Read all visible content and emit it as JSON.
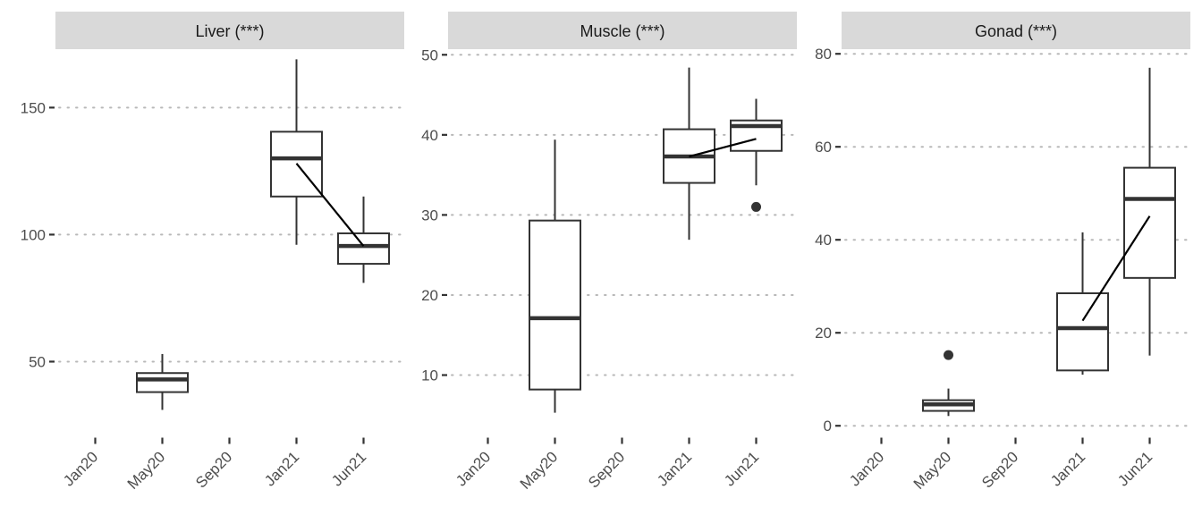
{
  "chart_data": [
    {
      "type": "box",
      "title": "Liver (***)",
      "xlabel": "",
      "ylabel": "",
      "categories": [
        "Jan20",
        "May20",
        "Sep20",
        "Jan21",
        "Jun21"
      ],
      "ylim": [
        22,
        173
      ],
      "yticks": [
        50,
        100,
        150
      ],
      "grid": "horizontal dotted",
      "boxes": [
        {
          "x": "May20",
          "whisker_low": 31,
          "q1": 38,
          "median": 43,
          "q3": 45.5,
          "whisker_high": 53,
          "outliers": []
        },
        {
          "x": "Jan21",
          "whisker_low": 96,
          "q1": 115,
          "median": 130,
          "q3": 140.5,
          "whisker_high": 169,
          "outliers": []
        },
        {
          "x": "Jun21",
          "whisker_low": 81,
          "q1": 88.5,
          "median": 95.5,
          "q3": 100.5,
          "whisker_high": 115,
          "outliers": []
        }
      ],
      "trend": [
        {
          "x": "Jan21",
          "y": 128
        },
        {
          "x": "Jun21",
          "y": 95.5
        }
      ]
    },
    {
      "type": "box",
      "title": "Muscle (***)",
      "xlabel": "",
      "ylabel": "",
      "categories": [
        "Jan20",
        "May20",
        "Sep20",
        "Jan21",
        "Jun21"
      ],
      "ylim": [
        2.8,
        50.7
      ],
      "yticks": [
        10,
        20,
        30,
        40,
        50
      ],
      "grid": "horizontal dotted",
      "boxes": [
        {
          "x": "May20",
          "whisker_low": 5.3,
          "q1": 8.2,
          "median": 17.1,
          "q3": 29.3,
          "whisker_high": 39.4,
          "outliers": []
        },
        {
          "x": "Jan21",
          "whisker_low": 26.9,
          "q1": 34.0,
          "median": 37.3,
          "q3": 40.7,
          "whisker_high": 48.4,
          "outliers": []
        },
        {
          "x": "Jun21",
          "whisker_low": 33.7,
          "q1": 38.0,
          "median": 41.1,
          "q3": 41.8,
          "whisker_high": 44.5,
          "outliers": [
            31.0
          ]
        }
      ],
      "trend": [
        {
          "x": "Jan21",
          "y": 37.3
        },
        {
          "x": "Jun21",
          "y": 39.5
        }
      ]
    },
    {
      "type": "box",
      "title": "Gonad (***)",
      "xlabel": "",
      "ylabel": "",
      "categories": [
        "Jan20",
        "May20",
        "Sep20",
        "Jan21",
        "Jun21"
      ],
      "ylim": [
        -1.5,
        81
      ],
      "yticks": [
        0,
        20,
        40,
        60,
        80
      ],
      "grid": "horizontal dotted",
      "boxes": [
        {
          "x": "May20",
          "whisker_low": 2.1,
          "q1": 3.2,
          "median": 4.6,
          "q3": 5.5,
          "whisker_high": 8.0,
          "outliers": [
            15.2
          ]
        },
        {
          "x": "Jan21",
          "whisker_low": 11.0,
          "q1": 11.9,
          "median": 21.0,
          "q3": 28.5,
          "whisker_high": 41.6,
          "outliers": []
        },
        {
          "x": "Jun21",
          "whisker_low": 15.1,
          "q1": 31.8,
          "median": 48.8,
          "q3": 55.5,
          "whisker_high": 77.0,
          "outliers": []
        }
      ],
      "trend": [
        {
          "x": "Jan21",
          "y": 22.6
        },
        {
          "x": "Jun21",
          "y": 45.1
        }
      ]
    }
  ]
}
